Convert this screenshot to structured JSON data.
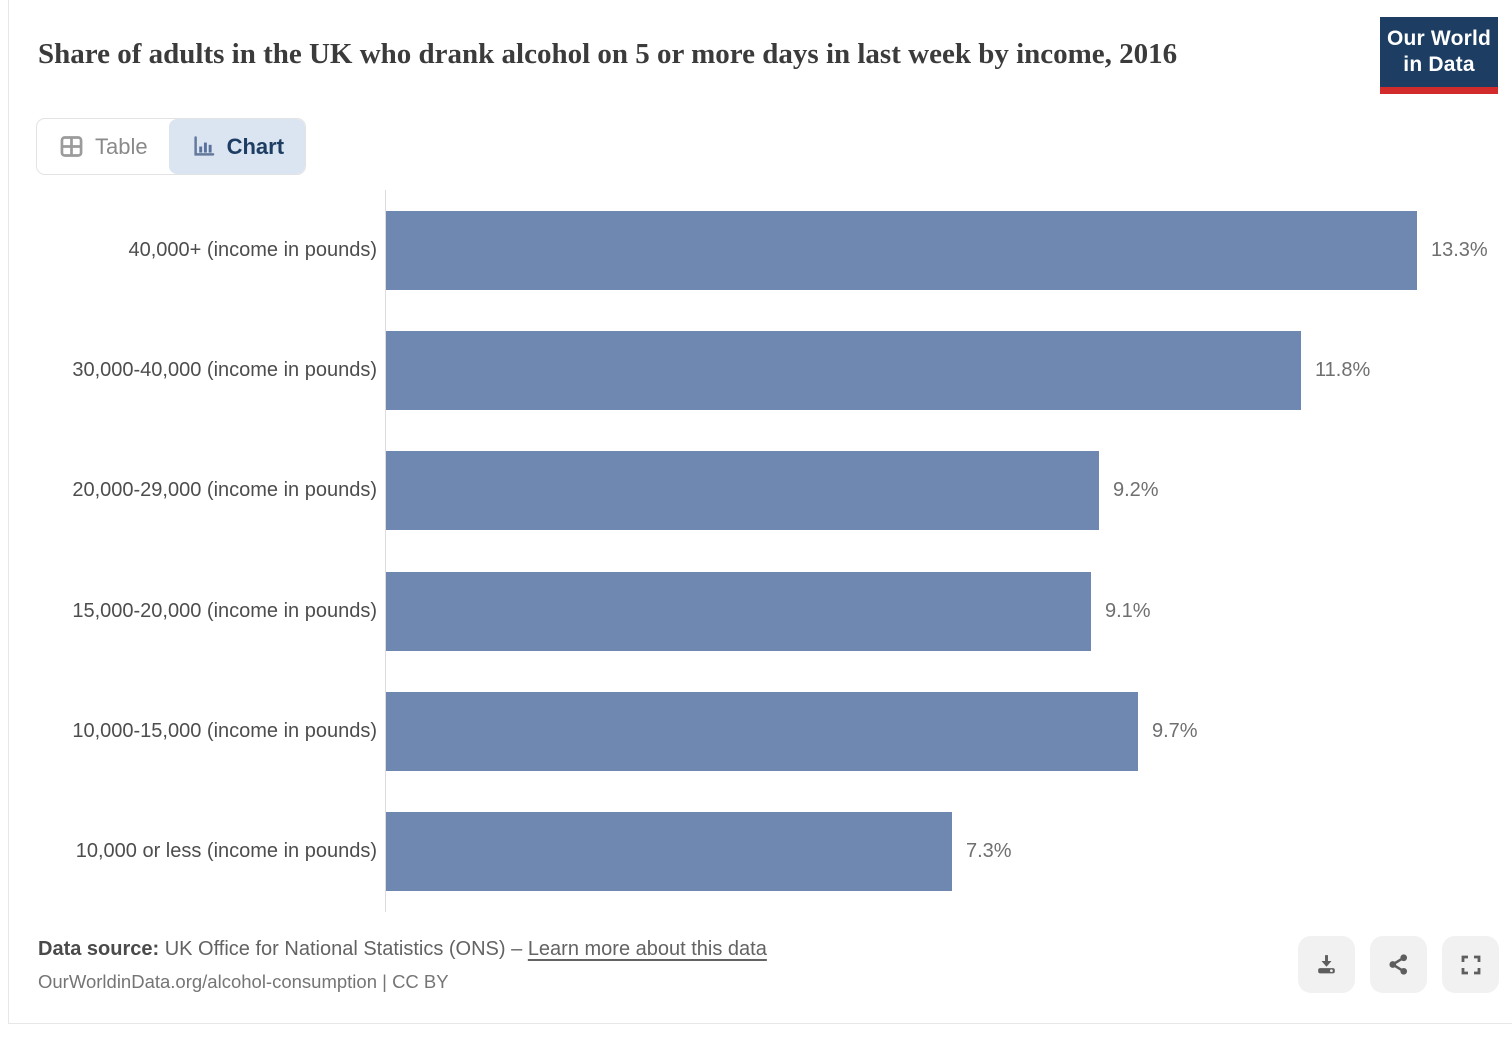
{
  "header": {
    "title": "Share of adults in the UK who drank alcohol on 5 or more days in last week by income, 2016",
    "logo": {
      "line1": "Our World",
      "line2": "in Data"
    }
  },
  "tabs": {
    "table_label": "Table",
    "chart_label": "Chart"
  },
  "chart_data": {
    "type": "bar",
    "orientation": "horizontal",
    "title": "Share of adults in the UK who drank alcohol on 5 or more days in last week by income, 2016",
    "categories": [
      "40,000+ (income in pounds)",
      "30,000-40,000 (income in pounds)",
      "20,000-29,000 (income in pounds)",
      "15,000-20,000 (income in pounds)",
      "10,000-15,000 (income in pounds)",
      "10,000 or less (income in pounds)"
    ],
    "values": [
      13.3,
      11.8,
      9.2,
      9.1,
      9.7,
      7.3
    ],
    "value_labels": [
      "13.3%",
      "11.8%",
      "9.2%",
      "9.1%",
      "9.7%",
      "7.3%"
    ],
    "unit": "%",
    "xlabel": "",
    "ylabel": "",
    "xlim": [
      0,
      13.3
    ],
    "grid": false,
    "legend": false,
    "bar_color": "#6e88b1"
  },
  "footer": {
    "source_prefix": "Data source:",
    "source_text": "UK Office for National Statistics (ONS)",
    "separator": "–",
    "link_label": "Learn more about this data",
    "attribution": "OurWorldinData.org/alcohol-consumption | CC BY"
  },
  "actions": {
    "download": "download-icon",
    "share": "share-icon",
    "fullscreen": "fullscreen-icon"
  },
  "colors": {
    "accent_navy": "#1d3d63",
    "logo_red": "#d22b2b",
    "bar": "#6e88b1",
    "chart_tab_bg": "#dbe5f1",
    "axis": "#dcdcdc"
  }
}
